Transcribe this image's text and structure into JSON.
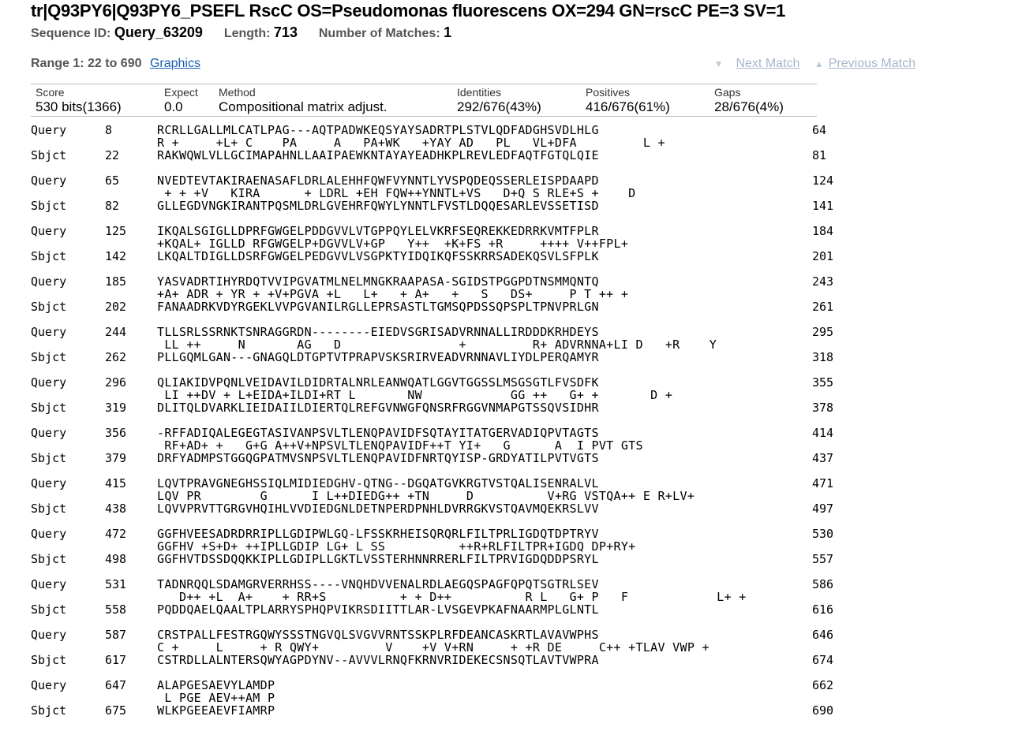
{
  "header": {
    "title": "tr|Q93PY6|Q93PY6_PSEFL RscC OS=Pseudomonas fluorescens OX=294 GN=rscC PE=3 SV=1",
    "sequence_id_label": "Sequence ID:",
    "sequence_id": "Query_63209",
    "length_label": "Length:",
    "length": "713",
    "matches_label": "Number of Matches:",
    "matches": "1"
  },
  "range": {
    "label": "Range 1: 22 to 690",
    "graphics_link": "Graphics",
    "next_match": "Next Match",
    "previous_match": "Previous Match"
  },
  "stats": {
    "headers": [
      "Score",
      "Expect",
      "Method",
      "Identities",
      "Positives",
      "Gaps"
    ],
    "values": [
      "530 bits(1366)",
      "0.0",
      "Compositional matrix adjust.",
      "292/676(43%)",
      "416/676(61%)",
      "28/676(4%)"
    ]
  },
  "labels": {
    "query": "Query",
    "sbjct": "Sbjct"
  },
  "blocks": [
    {
      "qs": "8",
      "q": "RCRLLGALLMLCATLPAG---AQTPADWKEQSYAYSADRTPLSTVLQDFADGHSVDLHLG",
      "qe": "64",
      "m": "R +     +L+ C    PA     A   PA+WK   +YAY AD   PL   VL+DFA         L +",
      "ss": "22",
      "s": "RAKWQWLVLLGCIMAPAHNLLAAIPAEWKNTAYAYEADHKPLREVLEDFAQTFGTQLQIE",
      "se": "81"
    },
    {
      "qs": "65",
      "q": "NVEDTEVTAKIRAENASAFLDRLALEHHFQWFVYNNTLYVSPQDEQSSERLEISPDAAPD",
      "qe": "124",
      "m": " + + +V   KIRA      + LDRL +EH FQW++YNNTL+VS   D+Q S RLE+S +    D",
      "ss": "82",
      "s": "GLLEGDVNGKIRANTPQSMLDRLGVEHRFQWYLYNNTLFVSTLDQQESARLEVSSETISD",
      "se": "141"
    },
    {
      "qs": "125",
      "q": "IKQALSGIGLLDPRFGWGELPDDGVVLVTGPPQYLELVKRFSEQREKKEDRRKVMTFPLR",
      "qe": "184",
      "m": "+KQAL+ IGLLD RFGWGELP+DGVVLV+GP   Y++  +K+FS +R     ++++ V++FPL+",
      "ss": "142",
      "s": "LKQALTDIGLLDSRFGWGELPEDGVVLVSGPKTYIDQIKQFSSKRRSADEKQSVLSFPLK",
      "se": "201"
    },
    {
      "qs": "185",
      "q": "YASVADRTIHYRDQTVVIPGVATMLNELMNGKRAAPASA-SGIDSTPGGPDTNSMMQNTQ",
      "qe": "243",
      "m": "+A+ ADR + YR + +V+PGVA +L   L+   + A+   +   S   DS+     P T ++ +",
      "ss": "202",
      "s": "FANAADRKVDYRGEKLVVPGVANILRGLLEPRSASTLTGMSQPDSSQPSPLTPNVPRLGN",
      "se": "261"
    },
    {
      "qs": "244",
      "q": "TLLSRLSSRNKTSNRAGGRDN--------EIEDVSGRISADVRNNALLIRDDDKRHDEYS",
      "qe": "295",
      "m": " LL ++     N       AG   D                +         R+ ADVRNNA+LI D   +R    Y",
      "ss": "262",
      "s": "PLLGQMLGAN---GNAGQLDTGPTVTPRAPVSKSRIRVEADVRNNAVLIYDLPERQAMYR",
      "se": "318"
    },
    {
      "qs": "296",
      "q": "QLIAKIDVPQNLVEIDAVILDIDRTALNRLEANWQATLGGVTGGSSLMSGSGTLFVSDFK",
      "qe": "355",
      "m": " LI ++DV + L+EIDA+ILDI+RT L       NW            GG ++   G+ +       D +",
      "ss": "319",
      "s": "DLITQLDVARKLIEIDAIILDIERTQLREFGVNWGFQNSRFRGGVNMAPGTSSQVSIDHR",
      "se": "378"
    },
    {
      "qs": "356",
      "q": "-RFFADIQALEGEGTASIVANPSVLTLENQPAVIDFSQTAYITATGERVADIQPVTAGTS",
      "qe": "414",
      "m": " RF+AD+ +   G+G A++V+NPSVLTLENQPAVIDF++T YI+   G      A  I PVT GTS",
      "ss": "379",
      "s": "DRFYADMPSTGGQGPATMVSNPSVLTLENQPAVIDFNRTQYISP-GRDYATILPVTVGTS",
      "se": "437"
    },
    {
      "qs": "415",
      "q": "LQVTPRAVGNEGHSSIQLMIDIEDGHV-QTNG--DGQATGVKRGTVSTQALISENRALVL",
      "qe": "471",
      "m": "LQV PR        G      I L++DIEDG++ +TN     D          V+RG VSTQA++ E R+LV+",
      "ss": "438",
      "s": "LQVVPRVTTGRGVHQIHLVVDIEDGNLDETNPERDPNHLDVRRGKVSTQAVMQEKRSLVV",
      "se": "497"
    },
    {
      "qs": "472",
      "q": "GGFHVEESADRDRRIPLLGDIPWLGQ-LFSSKRHEISQRQRLFILTPRLIGDQTDPTRYV",
      "qe": "530",
      "m": "GGFHV +S+D+ ++IPLLGDIP LG+ L SS          ++R+RLFILTPR+IGDQ DP+RY+",
      "ss": "498",
      "s": "GGFHVTDSSDQQKKIPLLGDIPLLGKTLVSSTERHNNRRERLFILTPRVIGDQDDPSRYL",
      "se": "557"
    },
    {
      "qs": "531",
      "q": "TADNRQQLSDAMGRVERRHSS----VNQHDVVENALRDLAEGQSPAGFQPQTSGTRLSEV",
      "qe": "586",
      "m": "   D++ +L  A+    + RR+S          + + D++          R L   G+ P   F            L+ +",
      "ss": "558",
      "s": "PQDDQAELQAALTPLARRYSPHQPVIKRSDIITTLAR-LVSGEVPKAFNAARMPLGLNTL",
      "se": "616"
    },
    {
      "qs": "587",
      "q": "CRSTPALLFESTRGQWYSSSTNGVQLSVGVVRNTSSKPLRFDEANCASKRTLAVAVWPHS",
      "qe": "646",
      "m": "C +     L     + R QWY+         V    +V V+RN     + +R DE     C++ +TLAV VWP +",
      "ss": "617",
      "s": "CSTRDLLALNTERSQWYAGPDYNV--AVVVLRNQFKRNVRIDEKECSNSQTLAVTVWPRA",
      "se": "674"
    },
    {
      "qs": "647",
      "q": "ALAPGESAEVYLAMDP",
      "qe": "662",
      "m": " L PGE AEV++AM P",
      "ss": "675",
      "s": "WLKPGEEAEVFIAMRP",
      "se": "690"
    }
  ]
}
